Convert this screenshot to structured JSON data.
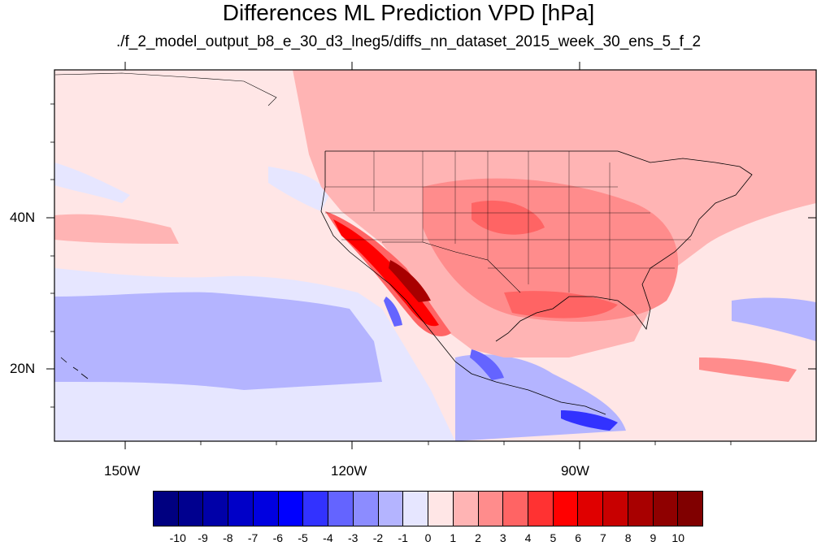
{
  "title": "Differences ML Prediction VPD [hPa]",
  "subtitle": "./f_2_model_output_b8_e_30_d3_lneg5/diffs_nn_dataset_2015_week_30_ens_5_f_2",
  "map": {
    "lon_ticks": [
      "150W",
      "120W",
      "90W"
    ],
    "lat_ticks": [
      "40N",
      "20N"
    ],
    "lon_range": [
      -160,
      -60
    ],
    "lat_range": [
      10,
      59
    ]
  },
  "colorbar": {
    "labels": [
      "-10",
      "-9",
      "-8",
      "-7",
      "-6",
      "-5",
      "-4",
      "-3",
      "-2",
      "-1",
      "0",
      "1",
      "2",
      "3",
      "4",
      "5",
      "6",
      "7",
      "8",
      "9",
      "10"
    ],
    "colors": [
      "#000080",
      "#00008f",
      "#0000a8",
      "#0000c8",
      "#0000e0",
      "#0000ff",
      "#3232ff",
      "#6464ff",
      "#8c8cff",
      "#b4b4ff",
      "#e6e6ff",
      "#ffe6e6",
      "#ffb4b4",
      "#ff8c8c",
      "#ff6464",
      "#ff3232",
      "#ff0000",
      "#e00000",
      "#c80000",
      "#a80000",
      "#8f0000",
      "#800000"
    ]
  }
}
